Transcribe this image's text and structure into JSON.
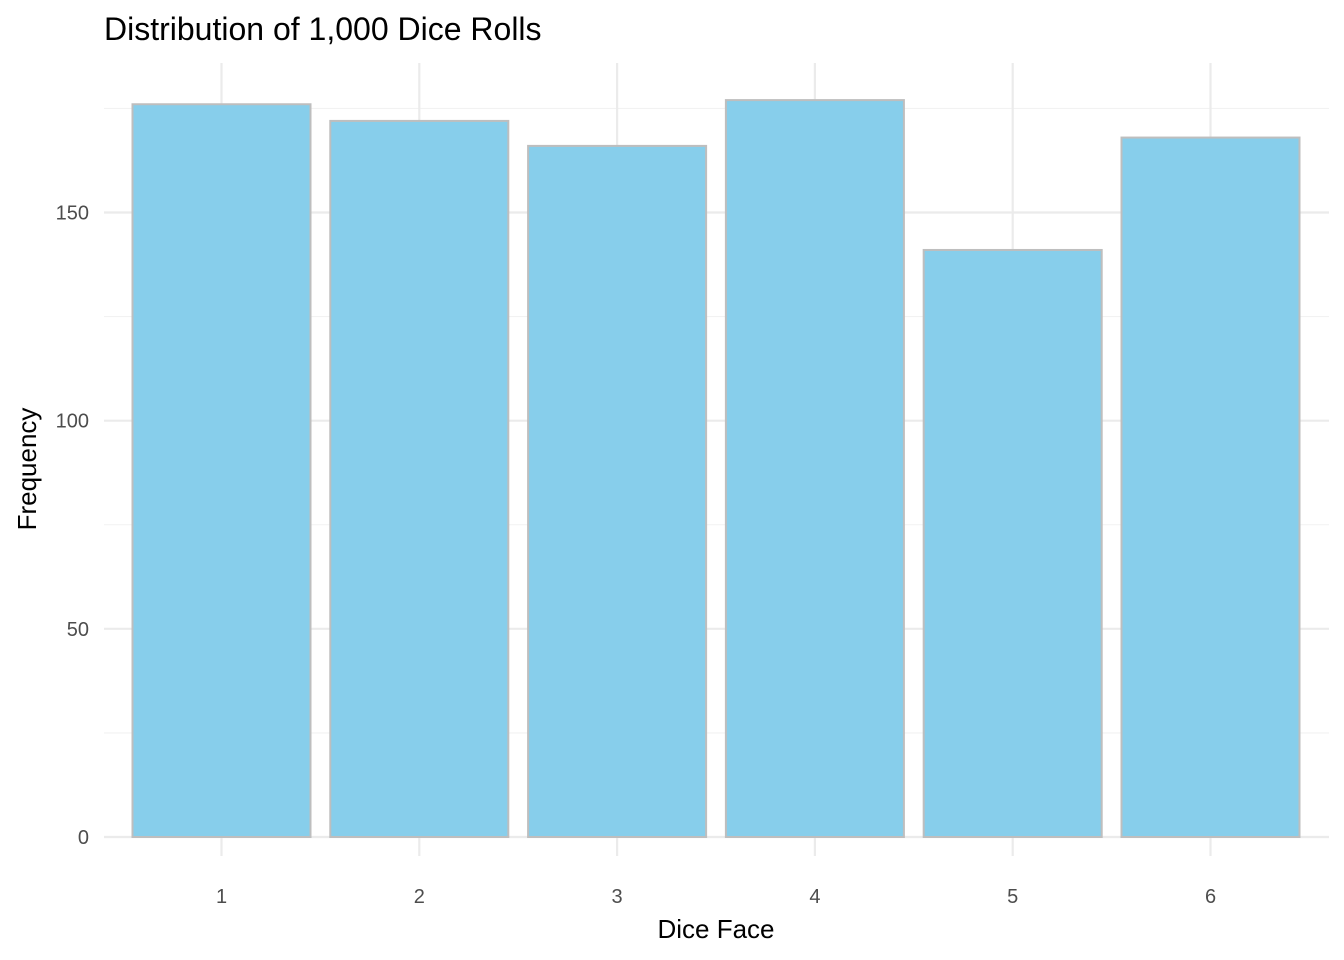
{
  "chart_data": {
    "type": "bar",
    "title": "Distribution of 1,000 Dice Rolls",
    "xlabel": "Dice Face",
    "ylabel": "Frequency",
    "categories": [
      "1",
      "2",
      "3",
      "4",
      "5",
      "6"
    ],
    "values": [
      176,
      172,
      166,
      177,
      141,
      168
    ],
    "ylim": [
      0,
      186
    ],
    "yticks": [
      0,
      50,
      100,
      150
    ],
    "grid": true,
    "colors": {
      "bar_fill": "#87CEEB",
      "bar_stroke": "#BEBEBE"
    }
  }
}
